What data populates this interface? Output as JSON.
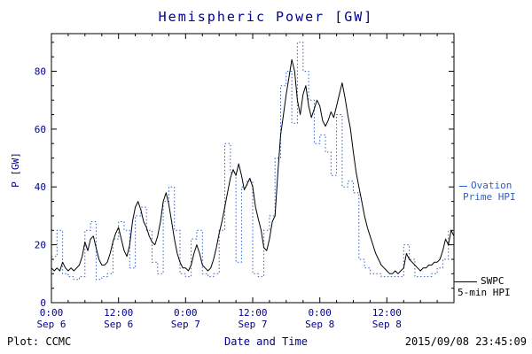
{
  "colors": {
    "axis_text": "#00008B",
    "ovation_blue": "#2F5FC4",
    "swpc_black": "#000000",
    "background": "#FFFFFF"
  },
  "legend": {
    "ovation": {
      "line1": "Ovation",
      "line2": "Prime HPI"
    },
    "swpc": {
      "line1": "SWPC",
      "line2": "5-min HPI"
    }
  },
  "footer": {
    "left": "Plot: CCMC",
    "timestamp": "2015/09/08 23:45:09"
  },
  "chart_data": {
    "type": "line",
    "title": "Hemispheric Power [GW]",
    "xlabel": "Date and Time",
    "ylabel": "P [GW]",
    "ylim": [
      0,
      93
    ],
    "xlim_hours": [
      0,
      72
    ],
    "grid": false,
    "legend_position": "right-outside",
    "y_ticks": [
      0,
      20,
      40,
      60,
      80
    ],
    "y_minor_step": 5,
    "x_major_hours": [
      0,
      12,
      24,
      36,
      48,
      60,
      72
    ],
    "x_minor_step": 3,
    "x_ticks": [
      {
        "h": 0,
        "line1": "0:00",
        "line2": "Sep 6"
      },
      {
        "h": 12,
        "line1": "12:00",
        "line2": "Sep 6"
      },
      {
        "h": 24,
        "line1": "0:00",
        "line2": "Sep 7"
      },
      {
        "h": 36,
        "line1": "12:00",
        "line2": "Sep 7"
      },
      {
        "h": 48,
        "line1": "0:00",
        "line2": "Sep 8"
      },
      {
        "h": 60,
        "line1": "12:00",
        "line2": "Sep 8"
      }
    ],
    "series": [
      {
        "id": "ovation-line",
        "name": "Ovation Prime HPI",
        "style": "dotted-step",
        "color": "#2F5FC4",
        "points": [
          [
            0,
            16
          ],
          [
            1,
            25
          ],
          [
            2,
            10
          ],
          [
            3,
            9
          ],
          [
            4,
            8
          ],
          [
            5,
            9
          ],
          [
            6,
            25
          ],
          [
            7,
            28
          ],
          [
            8,
            8
          ],
          [
            9,
            9
          ],
          [
            10,
            10
          ],
          [
            11,
            22
          ],
          [
            12,
            28
          ],
          [
            13,
            25
          ],
          [
            14,
            12
          ],
          [
            15,
            30
          ],
          [
            16,
            33
          ],
          [
            17,
            25
          ],
          [
            18,
            14
          ],
          [
            19,
            10
          ],
          [
            20,
            35
          ],
          [
            21,
            40
          ],
          [
            22,
            25
          ],
          [
            23,
            10
          ],
          [
            24,
            9
          ],
          [
            25,
            22
          ],
          [
            26,
            25
          ],
          [
            27,
            10
          ],
          [
            28,
            9
          ],
          [
            29,
            10
          ],
          [
            30,
            25
          ],
          [
            31,
            55
          ],
          [
            32,
            45
          ],
          [
            33,
            14
          ],
          [
            34,
            40
          ],
          [
            35,
            42
          ],
          [
            36,
            10
          ],
          [
            37,
            9
          ],
          [
            38,
            25
          ],
          [
            39,
            30
          ],
          [
            40,
            50
          ],
          [
            41,
            75
          ],
          [
            42,
            80
          ],
          [
            43,
            62
          ],
          [
            44,
            90
          ],
          [
            45,
            80
          ],
          [
            46,
            70
          ],
          [
            47,
            55
          ],
          [
            48,
            58
          ],
          [
            49,
            52
          ],
          [
            50,
            44
          ],
          [
            51,
            65
          ],
          [
            52,
            40
          ],
          [
            53,
            42
          ],
          [
            54,
            38
          ],
          [
            55,
            15
          ],
          [
            56,
            12
          ],
          [
            57,
            10
          ],
          [
            58,
            10
          ],
          [
            59,
            9
          ],
          [
            60,
            9
          ],
          [
            61,
            9
          ],
          [
            62,
            9
          ],
          [
            63,
            20
          ],
          [
            64,
            15
          ],
          [
            65,
            9
          ],
          [
            66,
            9
          ],
          [
            67,
            9
          ],
          [
            68,
            10
          ],
          [
            69,
            12
          ],
          [
            70,
            15
          ],
          [
            71,
            25
          ]
        ]
      },
      {
        "id": "swpc-line",
        "name": "SWPC 5-min HPI",
        "style": "solid",
        "color": "#000000",
        "points": [
          [
            0,
            12
          ],
          [
            0.5,
            11
          ],
          [
            1,
            12
          ],
          [
            1.5,
            11
          ],
          [
            2,
            14
          ],
          [
            2.5,
            12
          ],
          [
            3,
            11
          ],
          [
            3.5,
            12
          ],
          [
            4,
            11
          ],
          [
            4.5,
            12
          ],
          [
            5,
            13
          ],
          [
            5.5,
            16
          ],
          [
            6,
            21
          ],
          [
            6.5,
            18
          ],
          [
            7,
            22
          ],
          [
            7.5,
            23
          ],
          [
            8,
            19
          ],
          [
            8.5,
            15
          ],
          [
            9,
            13
          ],
          [
            9.5,
            13
          ],
          [
            10,
            14
          ],
          [
            10.5,
            17
          ],
          [
            11,
            21
          ],
          [
            11.5,
            24
          ],
          [
            12,
            26
          ],
          [
            12.5,
            22
          ],
          [
            13,
            18
          ],
          [
            13.5,
            16
          ],
          [
            14,
            20
          ],
          [
            14.5,
            28
          ],
          [
            15,
            33
          ],
          [
            15.5,
            35
          ],
          [
            16,
            32
          ],
          [
            16.5,
            28
          ],
          [
            17,
            26
          ],
          [
            17.5,
            23
          ],
          [
            18,
            21
          ],
          [
            18.5,
            20
          ],
          [
            19,
            23
          ],
          [
            19.5,
            28
          ],
          [
            20,
            35
          ],
          [
            20.5,
            38
          ],
          [
            21,
            34
          ],
          [
            21.5,
            28
          ],
          [
            22,
            22
          ],
          [
            22.5,
            17
          ],
          [
            23,
            14
          ],
          [
            23.5,
            12
          ],
          [
            24,
            12
          ],
          [
            24.5,
            11
          ],
          [
            25,
            13
          ],
          [
            25.5,
            17
          ],
          [
            26,
            20
          ],
          [
            26.5,
            17
          ],
          [
            27,
            13
          ],
          [
            27.5,
            12
          ],
          [
            28,
            11
          ],
          [
            28.5,
            12
          ],
          [
            29,
            15
          ],
          [
            29.5,
            19
          ],
          [
            30,
            24
          ],
          [
            30.5,
            28
          ],
          [
            31,
            33
          ],
          [
            31.5,
            38
          ],
          [
            32,
            43
          ],
          [
            32.5,
            46
          ],
          [
            33,
            44
          ],
          [
            33.5,
            48
          ],
          [
            34,
            44
          ],
          [
            34.5,
            39
          ],
          [
            35,
            41
          ],
          [
            35.5,
            43
          ],
          [
            36,
            40
          ],
          [
            36.5,
            33
          ],
          [
            37,
            29
          ],
          [
            37.5,
            25
          ],
          [
            38,
            19
          ],
          [
            38.5,
            18
          ],
          [
            39,
            22
          ],
          [
            39.5,
            28
          ],
          [
            40,
            30
          ],
          [
            40.5,
            45
          ],
          [
            41,
            58
          ],
          [
            41.5,
            65
          ],
          [
            42,
            72
          ],
          [
            42.5,
            78
          ],
          [
            43,
            84
          ],
          [
            43.5,
            80
          ],
          [
            44,
            70
          ],
          [
            44.5,
            65
          ],
          [
            45,
            72
          ],
          [
            45.5,
            75
          ],
          [
            46,
            68
          ],
          [
            46.5,
            64
          ],
          [
            47,
            67
          ],
          [
            47.5,
            70
          ],
          [
            48,
            68
          ],
          [
            48.5,
            63
          ],
          [
            49,
            61
          ],
          [
            49.5,
            63
          ],
          [
            50,
            66
          ],
          [
            50.5,
            64
          ],
          [
            51,
            68
          ],
          [
            51.5,
            72
          ],
          [
            52,
            76
          ],
          [
            52.5,
            71
          ],
          [
            53,
            65
          ],
          [
            53.5,
            60
          ],
          [
            54,
            52
          ],
          [
            54.5,
            45
          ],
          [
            55,
            40
          ],
          [
            55.5,
            35
          ],
          [
            56,
            30
          ],
          [
            56.5,
            26
          ],
          [
            57,
            23
          ],
          [
            57.5,
            20
          ],
          [
            58,
            17
          ],
          [
            58.5,
            15
          ],
          [
            59,
            13
          ],
          [
            59.5,
            12
          ],
          [
            60,
            11
          ],
          [
            60.5,
            10
          ],
          [
            61,
            10
          ],
          [
            61.5,
            11
          ],
          [
            62,
            10
          ],
          [
            62.5,
            11
          ],
          [
            63,
            12
          ],
          [
            63.5,
            17
          ],
          [
            64,
            15
          ],
          [
            64.5,
            14
          ],
          [
            65,
            13
          ],
          [
            65.5,
            12
          ],
          [
            66,
            11
          ],
          [
            66.5,
            12
          ],
          [
            67,
            12
          ],
          [
            67.5,
            13
          ],
          [
            68,
            13
          ],
          [
            68.5,
            14
          ],
          [
            69,
            14
          ],
          [
            69.5,
            15
          ],
          [
            70,
            18
          ],
          [
            70.5,
            22
          ],
          [
            71,
            20
          ],
          [
            71.5,
            25
          ],
          [
            72,
            23
          ]
        ]
      }
    ]
  }
}
